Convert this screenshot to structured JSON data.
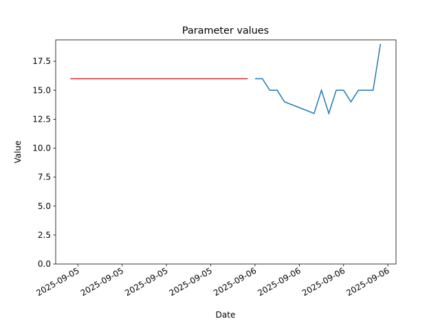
{
  "chart_data": {
    "type": "line",
    "title": "Parameter values",
    "xlabel": "Date",
    "ylabel": "Value",
    "xlim": [
      "2025-09-04T21:00",
      "2025-09-06T19:06"
    ],
    "xticks": [
      {
        "value": "2025-09-05T00:00",
        "label": "2025-09-05"
      },
      {
        "value": "2025-09-05T06:00",
        "label": "2025-09-05"
      },
      {
        "value": "2025-09-05T12:00",
        "label": "2025-09-05"
      },
      {
        "value": "2025-09-05T18:00",
        "label": "2025-09-05"
      },
      {
        "value": "2025-09-06T00:00",
        "label": "2025-09-06"
      },
      {
        "value": "2025-09-06T06:00",
        "label": "2025-09-06"
      },
      {
        "value": "2025-09-06T12:00",
        "label": "2025-09-06"
      },
      {
        "value": "2025-09-06T18:00",
        "label": "2025-09-06"
      }
    ],
    "ylim": [
      0,
      19.35
    ],
    "yticks": [
      {
        "value": 0,
        "label": "0.0"
      },
      {
        "value": 2.5,
        "label": "2.5"
      },
      {
        "value": 5,
        "label": "5.0"
      },
      {
        "value": 7.5,
        "label": "7.5"
      },
      {
        "value": 10,
        "label": "10.0"
      },
      {
        "value": 12.5,
        "label": "12.5"
      },
      {
        "value": 15,
        "label": "15.0"
      },
      {
        "value": 17.5,
        "label": "17.5"
      }
    ],
    "series": [
      {
        "color": "#d62728",
        "x": [
          "2025-09-04T23:00",
          "2025-09-05T23:00"
        ],
        "values": [
          16,
          16
        ]
      },
      {
        "color": "#1f77b4",
        "x": [
          "2025-09-06T00:00",
          "2025-09-06T01:00",
          "2025-09-06T02:00",
          "2025-09-06T03:00",
          "2025-09-06T04:00",
          "2025-09-06T08:00",
          "2025-09-06T09:00",
          "2025-09-06T10:00",
          "2025-09-06T11:00",
          "2025-09-06T12:00",
          "2025-09-06T13:00",
          "2025-09-06T14:00",
          "2025-09-06T16:00",
          "2025-09-06T17:00"
        ],
        "values": [
          16,
          16,
          15,
          15,
          14,
          13,
          15,
          13,
          15,
          15,
          14,
          15,
          15,
          19
        ]
      }
    ]
  }
}
